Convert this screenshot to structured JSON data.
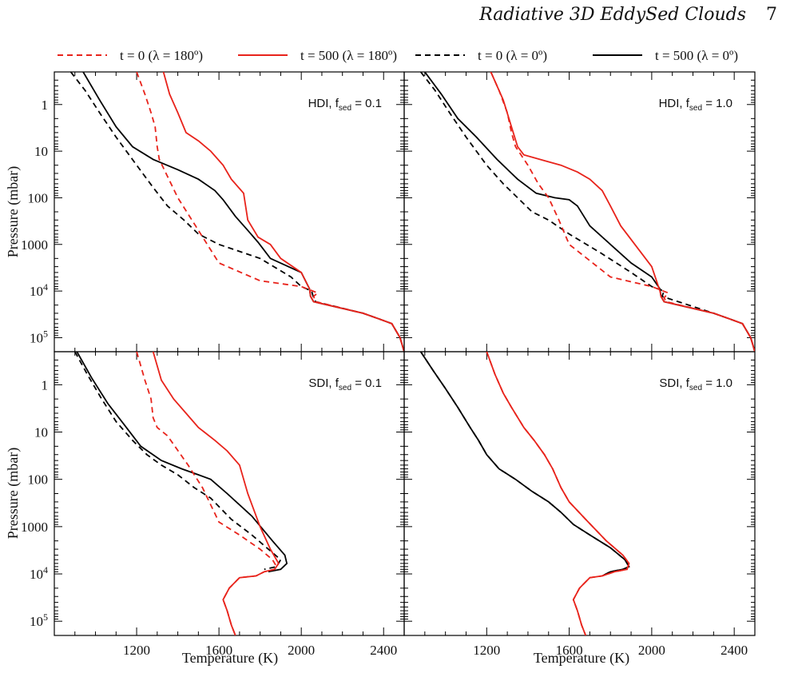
{
  "header": {
    "title": "Radiative 3D EddySed Clouds",
    "page_number": "7"
  },
  "legend": [
    {
      "label": "t = 0 (λ = 180º)",
      "color": "#e8231b",
      "dash": true
    },
    {
      "label": "t = 500 (λ = 180º)",
      "color": "#e8231b",
      "dash": false
    },
    {
      "label": "t = 0 (λ = 0º)",
      "color": "#000000",
      "dash": true
    },
    {
      "label": "t = 500 (λ = 0º)",
      "color": "#000000",
      "dash": false
    }
  ],
  "axes": {
    "xlabel": "Temperature (K)",
    "ylabel": "Pressure (mbar)",
    "x_ticks": [
      "1200",
      "1600",
      "2000",
      "2400"
    ],
    "y_ticks": [
      "1",
      "10",
      "100",
      "1000",
      "10⁴",
      "10⁵"
    ]
  },
  "chart_data": [
    {
      "type": "line",
      "panel": "top-left",
      "annotation": "HDI, f_sed = 0.1",
      "xlim": [
        800,
        2500
      ],
      "ylim": [
        0.2,
        200000
      ],
      "yscale": "log-inverted",
      "series": [
        {
          "name": "t = 0 (λ = 180º)",
          "color": "#e8231b",
          "dash": true,
          "x": [
            1200,
            1240,
            1270,
            1290,
            1300,
            1310,
            1400,
            1500,
            1600,
            1800,
            2000,
            2080,
            2060,
            2070,
            2300,
            2380,
            2440,
            2480,
            2500
          ],
          "y": [
            0.2,
            0.6,
            1.5,
            3,
            8,
            15,
            100,
            500,
            2500,
            6000,
            8000,
            11000,
            13000,
            17000,
            30000,
            40000,
            50000,
            100000,
            200000
          ]
        },
        {
          "name": "t = 500 (λ = 180º)",
          "color": "#e8231b",
          "dash": false,
          "x": [
            1330,
            1360,
            1400,
            1440,
            1500,
            1560,
            1620,
            1660,
            1720,
            1740,
            1790,
            1850,
            1900,
            2000,
            2040,
            2045,
            2060,
            2300,
            2380,
            2440,
            2480,
            2500
          ],
          "y": [
            0.2,
            0.6,
            1.5,
            4,
            6,
            10,
            20,
            40,
            80,
            300,
            700,
            1000,
            2000,
            4000,
            9000,
            13000,
            17000,
            30000,
            40000,
            50000,
            100000,
            200000
          ]
        },
        {
          "name": "t = 0 (λ = 0º)",
          "color": "#000000",
          "dash": true,
          "x": [
            880,
            950,
            1020,
            1100,
            1200,
            1280,
            1350,
            1430,
            1500,
            1600,
            1800,
            1950,
            2000,
            2050,
            2060,
            2070,
            2300,
            2380,
            2440,
            2480,
            2500
          ],
          "y": [
            0.2,
            0.5,
            1.5,
            5,
            20,
            60,
            150,
            300,
            600,
            1000,
            2000,
            5000,
            8000,
            10000,
            14000,
            17000,
            30000,
            40000,
            50000,
            100000,
            200000
          ]
        },
        {
          "name": "t = 500 (λ = 0º)",
          "color": "#000000",
          "dash": false,
          "x": [
            940,
            1020,
            1100,
            1180,
            1280,
            1400,
            1500,
            1580,
            1620,
            1680,
            1740,
            1790,
            1850,
            2000,
            2040,
            2045,
            2060,
            2300,
            2380,
            2440,
            2480,
            2500
          ],
          "y": [
            0.2,
            0.8,
            3,
            8,
            15,
            25,
            40,
            70,
            110,
            250,
            500,
            900,
            2000,
            4000,
            9000,
            13000,
            17000,
            30000,
            40000,
            50000,
            100000,
            200000
          ]
        }
      ]
    },
    {
      "type": "line",
      "panel": "top-right",
      "annotation": "HDI, f_sed = 1.0",
      "xlim": [
        800,
        2500
      ],
      "ylim": [
        0.2,
        200000
      ],
      "yscale": "log-inverted",
      "series": [
        {
          "name": "t = 0 (λ = 180º)",
          "color": "#e8231b",
          "dash": true,
          "x": [
            1220,
            1260,
            1300,
            1320,
            1340,
            1400,
            1450,
            1500,
            1550,
            1600,
            1800,
            2000,
            2080,
            2060,
            2070,
            2300,
            2380,
            2440,
            2480,
            2500
          ],
          "y": [
            0.2,
            0.5,
            1.5,
            4,
            8,
            20,
            50,
            100,
            300,
            1000,
            5000,
            8000,
            11000,
            14000,
            17000,
            30000,
            40000,
            50000,
            100000,
            200000
          ]
        },
        {
          "name": "t = 500 (λ = 180º)",
          "color": "#e8231b",
          "dash": false,
          "x": [
            1220,
            1280,
            1320,
            1350,
            1380,
            1480,
            1560,
            1640,
            1700,
            1760,
            1800,
            1850,
            2000,
            2040,
            2045,
            2060,
            2300,
            2380,
            2440,
            2480,
            2500
          ],
          "y": [
            0.2,
            0.8,
            3,
            8,
            12,
            16,
            20,
            28,
            40,
            70,
            150,
            400,
            3000,
            10000,
            13000,
            17000,
            30000,
            40000,
            50000,
            100000,
            200000
          ]
        },
        {
          "name": "t = 0 (λ = 0º)",
          "color": "#000000",
          "dash": true,
          "x": [
            880,
            950,
            1020,
            1100,
            1200,
            1280,
            1350,
            1420,
            1500,
            1600,
            1750,
            1900,
            2000,
            2060,
            2050,
            2300,
            2380,
            2440,
            2480,
            2500
          ],
          "y": [
            0.2,
            0.5,
            1.5,
            5,
            20,
            50,
            100,
            200,
            300,
            600,
            1500,
            4000,
            8000,
            10000,
            13000,
            30000,
            40000,
            50000,
            100000,
            200000
          ]
        },
        {
          "name": "t = 500 (λ = 0º)",
          "color": "#000000",
          "dash": false,
          "x": [
            900,
            980,
            1060,
            1150,
            1250,
            1350,
            1440,
            1530,
            1600,
            1640,
            1700,
            1800,
            1900,
            2000,
            2040,
            2045,
            2060,
            2300,
            2380,
            2440,
            2480,
            2500
          ],
          "y": [
            0.2,
            0.6,
            2,
            5,
            15,
            40,
            80,
            100,
            110,
            150,
            400,
            1000,
            2500,
            5000,
            9000,
            13000,
            17000,
            30000,
            40000,
            50000,
            100000,
            200000
          ]
        }
      ]
    },
    {
      "type": "line",
      "panel": "bottom-left",
      "annotation": "SDI, f_sed = 0.1",
      "xlim": [
        800,
        2500
      ],
      "ylim": [
        0.2,
        200000
      ],
      "yscale": "log-inverted",
      "series": [
        {
          "name": "t = 0 (λ = 180º)",
          "color": "#e8231b",
          "dash": true,
          "x": [
            1200,
            1240,
            1270,
            1280,
            1300,
            1350,
            1450,
            1520,
            1600,
            1700,
            1800,
            1860,
            1880,
            1870,
            1820,
            1780,
            1700,
            1650,
            1620,
            1640,
            1660,
            1680
          ],
          "y": [
            0.2,
            0.8,
            2,
            5,
            8,
            12,
            50,
            150,
            800,
            1500,
            3000,
            5000,
            7000,
            8000,
            9000,
            11000,
            12000,
            20000,
            35000,
            60000,
            120000,
            200000
          ]
        },
        {
          "name": "t = 500 (λ = 180º)",
          "color": "#e8231b",
          "dash": false,
          "x": [
            1280,
            1320,
            1380,
            1440,
            1500,
            1580,
            1640,
            1700,
            1740,
            1800,
            1850,
            1890,
            1870,
            1820,
            1780,
            1700,
            1650,
            1620,
            1640,
            1660,
            1680
          ],
          "y": [
            0.2,
            0.8,
            2,
            4,
            8,
            15,
            25,
            50,
            200,
            1000,
            3000,
            6000,
            8000,
            9000,
            11000,
            12000,
            20000,
            35000,
            60000,
            120000,
            200000
          ]
        },
        {
          "name": "t = 0 (λ = 0º)",
          "color": "#000000",
          "dash": true,
          "x": [
            900,
            960,
            1030,
            1100,
            1180,
            1250,
            1320,
            1400,
            1480,
            1560,
            1660,
            1760,
            1840,
            1900,
            1880,
            1820
          ],
          "y": [
            0.2,
            0.6,
            2,
            6,
            15,
            30,
            50,
            80,
            150,
            250,
            700,
            1500,
            3000,
            5000,
            7000,
            8000
          ]
        },
        {
          "name": "t = 500 (λ = 0º)",
          "color": "#000000",
          "dash": false,
          "x": [
            910,
            980,
            1060,
            1140,
            1220,
            1320,
            1420,
            1500,
            1560,
            1640,
            1760,
            1860,
            1920,
            1930,
            1900,
            1840
          ],
          "y": [
            0.2,
            0.7,
            2.5,
            7,
            20,
            40,
            60,
            80,
            100,
            200,
            600,
            2000,
            4000,
            6000,
            8000,
            9000
          ]
        }
      ]
    },
    {
      "type": "line",
      "panel": "bottom-right",
      "annotation": "SDI, f_sed = 1.0",
      "xlim": [
        800,
        2500
      ],
      "ylim": [
        0.2,
        200000
      ],
      "yscale": "log-inverted",
      "series": [
        {
          "name": "t = 0 (λ = 180º)",
          "color": "#e8231b",
          "dash": true,
          "x": [
            1200,
            1240,
            1280,
            1320,
            1380,
            1430,
            1480,
            1520,
            1560,
            1600,
            1680,
            1780,
            1860,
            1890,
            1880,
            1820,
            1760,
            1700,
            1650,
            1620,
            1640,
            1660,
            1680
          ],
          "y": [
            0.2,
            0.6,
            1.5,
            3,
            8,
            15,
            30,
            60,
            150,
            300,
            700,
            2000,
            4000,
            6000,
            8000,
            9000,
            11000,
            12000,
            20000,
            35000,
            60000,
            120000,
            200000
          ]
        },
        {
          "name": "t = 500 (λ = 180º)",
          "color": "#e8231b",
          "dash": false,
          "x": [
            1200,
            1240,
            1280,
            1320,
            1380,
            1430,
            1480,
            1520,
            1560,
            1600,
            1680,
            1780,
            1860,
            1890,
            1880,
            1820,
            1760,
            1700,
            1650,
            1620,
            1640,
            1660,
            1680
          ],
          "y": [
            0.2,
            0.6,
            1.5,
            3,
            8,
            15,
            30,
            60,
            150,
            300,
            700,
            2000,
            4000,
            6000,
            8000,
            9000,
            11000,
            12000,
            20000,
            35000,
            60000,
            120000,
            200000
          ]
        },
        {
          "name": "t = 0 (λ = 0º)",
          "color": "#000000",
          "dash": true,
          "x": [
            880,
            940,
            1000,
            1060,
            1120,
            1160,
            1200,
            1260,
            1340,
            1420,
            1500,
            1560,
            1620,
            1700,
            1800,
            1870,
            1890,
            1860,
            1800,
            1760
          ],
          "y": [
            0.2,
            0.5,
            1.2,
            3,
            8,
            15,
            30,
            60,
            100,
            180,
            300,
            500,
            900,
            1500,
            2800,
            5000,
            7000,
            8000,
            9000,
            11000
          ]
        },
        {
          "name": "t = 500 (λ = 0º)",
          "color": "#000000",
          "dash": false,
          "x": [
            880,
            940,
            1000,
            1060,
            1120,
            1160,
            1200,
            1260,
            1340,
            1420,
            1500,
            1560,
            1620,
            1700,
            1800,
            1870,
            1890,
            1860,
            1800,
            1760
          ],
          "y": [
            0.2,
            0.5,
            1.2,
            3,
            8,
            15,
            30,
            60,
            100,
            180,
            300,
            500,
            900,
            1500,
            2800,
            5000,
            7000,
            8000,
            9000,
            11000
          ]
        }
      ]
    }
  ]
}
